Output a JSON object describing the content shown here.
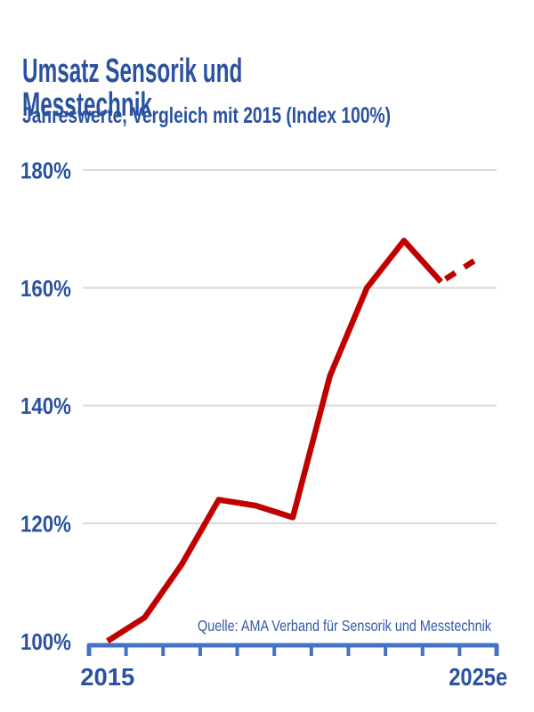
{
  "header": {
    "title_line1": "Umsatz Sensorik und",
    "title_line2": "Messtechnik",
    "subtitle": "Jahreswerte, Vergleich mit 2015 (Index 100%)"
  },
  "source": {
    "label": "Quelle: AMA Verband für Sensorik und Messtechnik"
  },
  "colors": {
    "title_blue": "#2B52A0",
    "axis_blue": "#4472C4",
    "line_red": "#C00000",
    "gridline_gray": "#D9D9D9",
    "source_blue": "#3459A4"
  },
  "chart_data": {
    "type": "line",
    "title": "Umsatz Sensorik und Messtechnik",
    "subtitle": "Jahreswerte, Vergleich mit 2015 (Index 100%)",
    "x": [
      2015,
      2016,
      2017,
      2018,
      2019,
      2020,
      2021,
      2022,
      2023,
      2024,
      2025
    ],
    "values": [
      100,
      104,
      113,
      124,
      123,
      121,
      145,
      160,
      168,
      161,
      165
    ],
    "forecast_from_index": 9,
    "forecast_style": "dashed",
    "ylim": [
      100,
      180
    ],
    "yticks": [
      100,
      120,
      140,
      160,
      180
    ],
    "ytick_labels": [
      "100%",
      "120%",
      "140%",
      "160%",
      "180%"
    ],
    "xtick_labels_shown": [
      "2015",
      "2025e"
    ],
    "grid": "horizontal",
    "legend": "none",
    "line_color": "#C00000",
    "source": "Quelle: AMA Verband für Sensorik und Messtechnik"
  }
}
